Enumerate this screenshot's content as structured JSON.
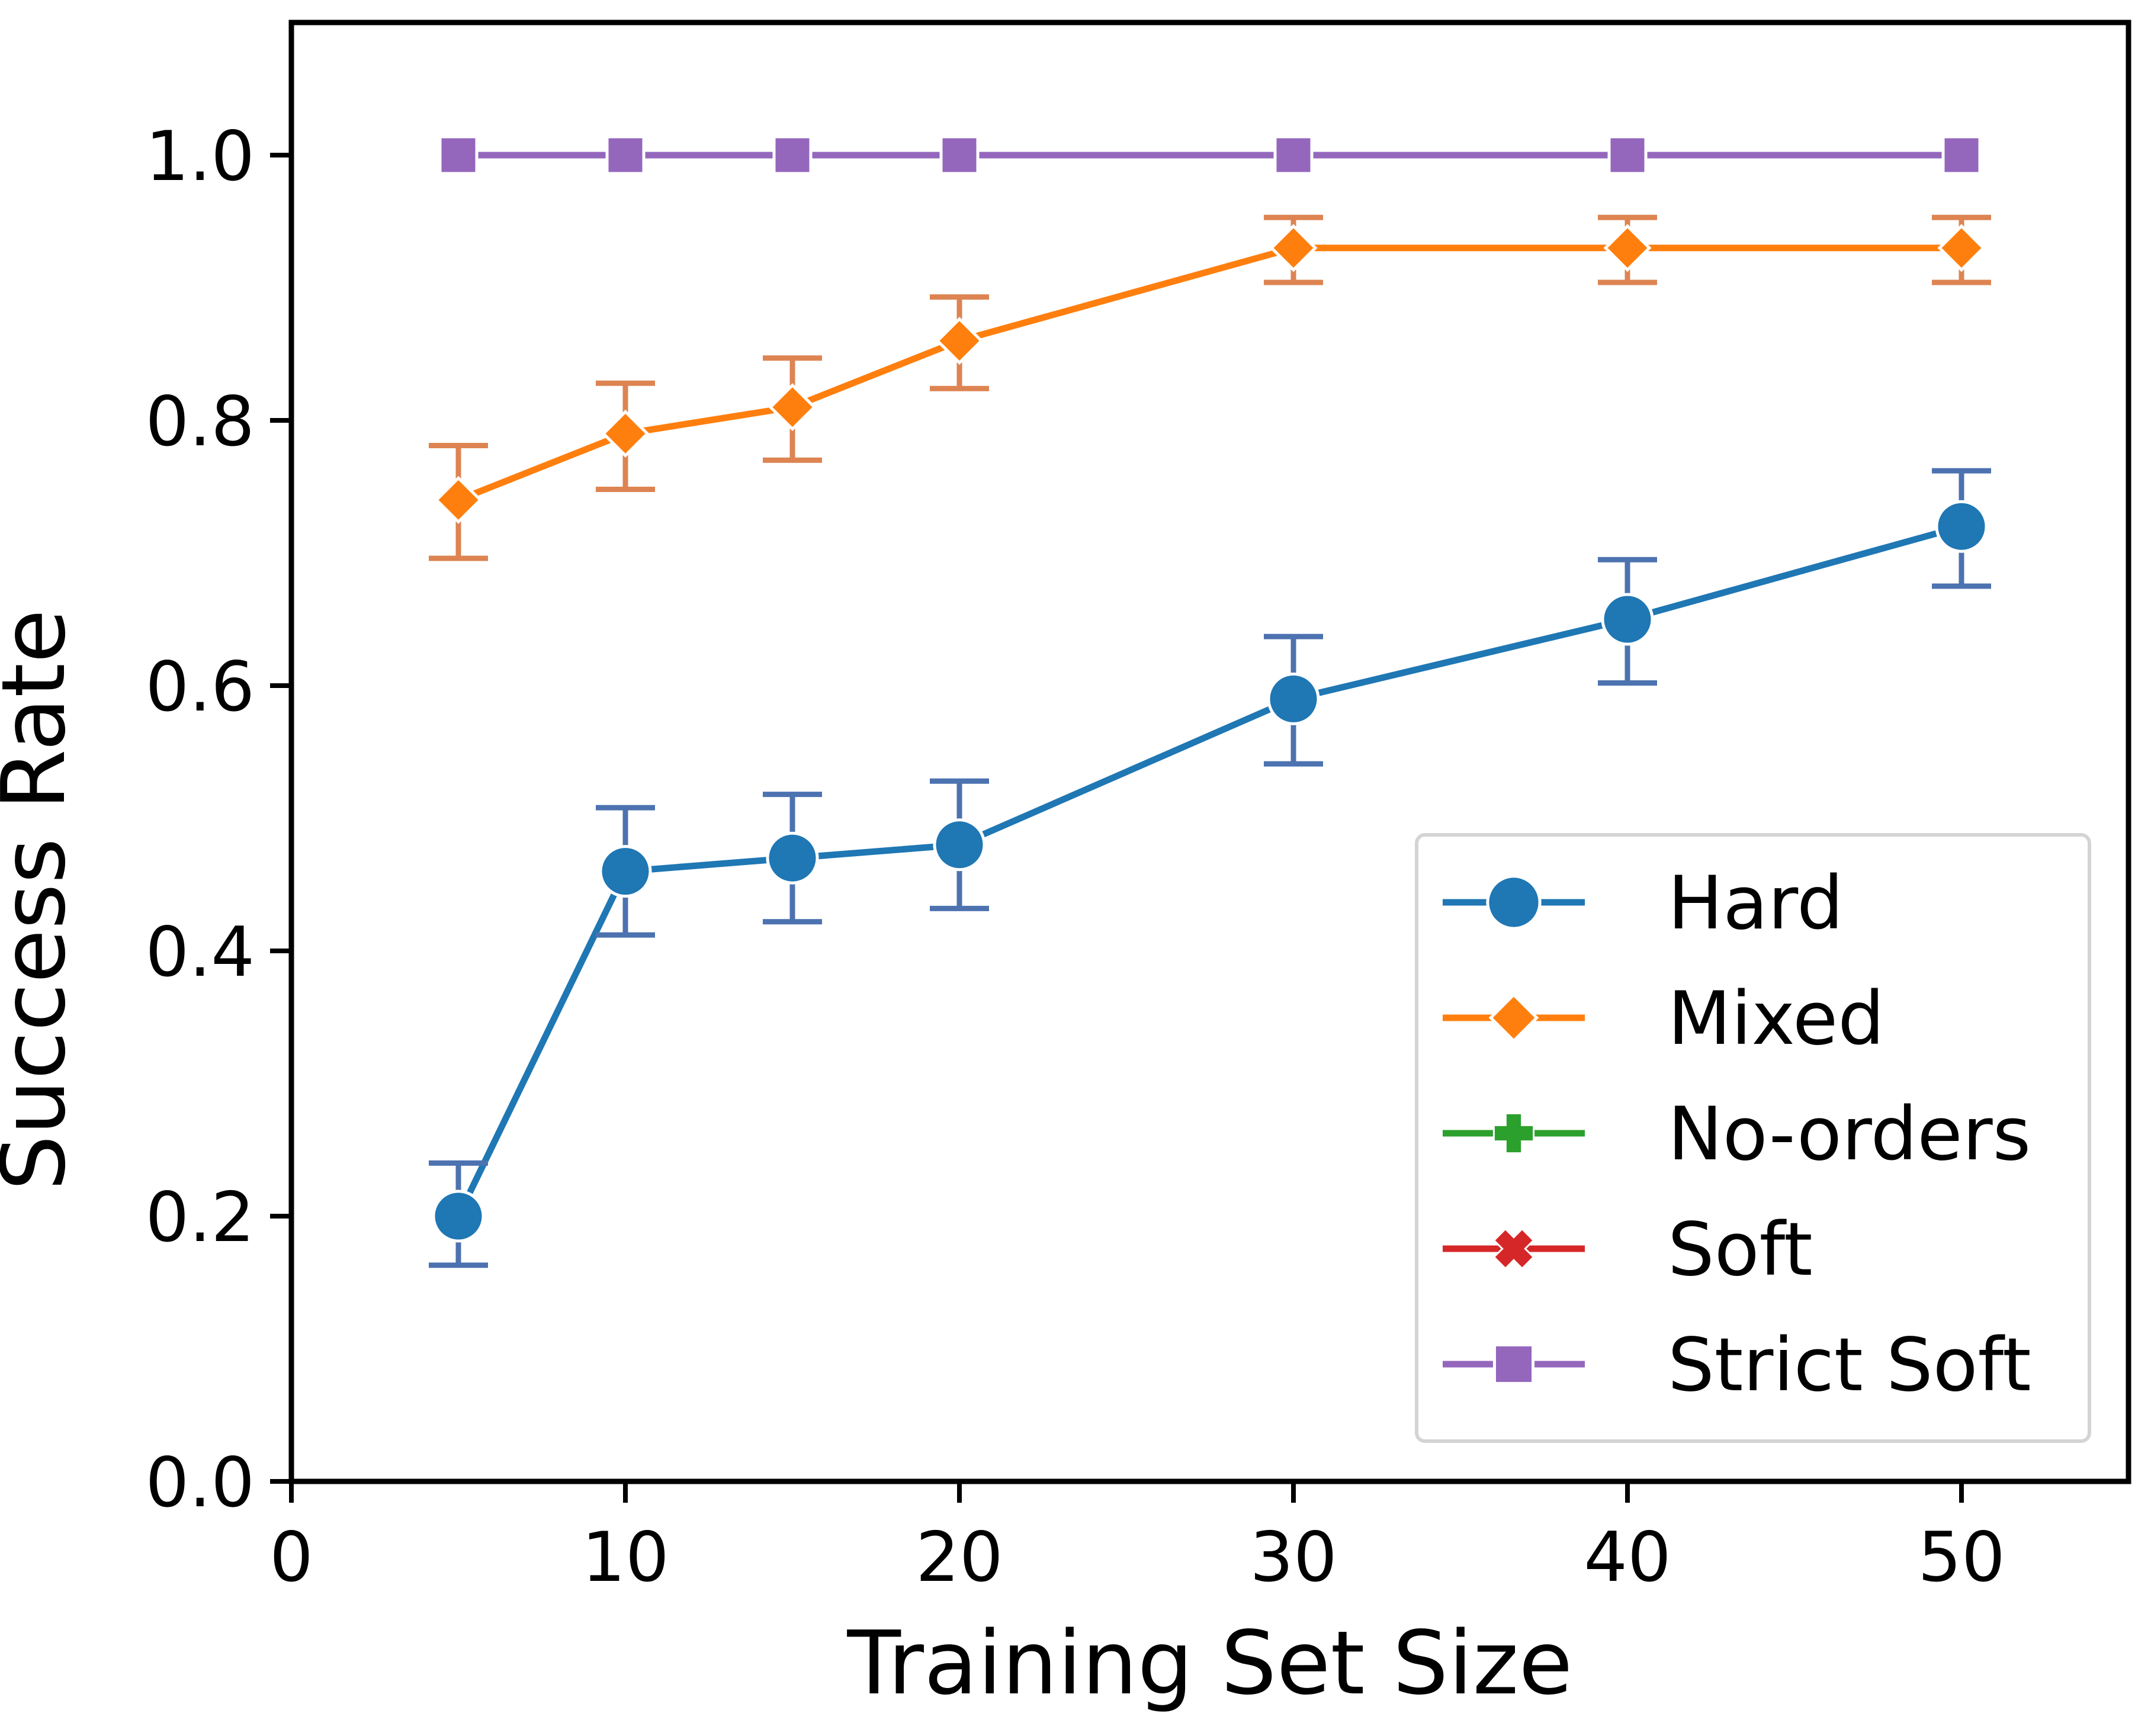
{
  "chart_data": {
    "type": "line",
    "title": "",
    "xlabel": "Training Set Size",
    "ylabel": "Success Rate",
    "xlim": [
      0,
      55
    ],
    "ylim": [
      0,
      1.1
    ],
    "xticks": [
      0,
      10,
      20,
      30,
      40,
      50
    ],
    "xtick_labels": [
      "0",
      "10",
      "20",
      "30",
      "40",
      "50"
    ],
    "yticks": [
      0.0,
      0.2,
      0.4,
      0.6,
      0.8,
      1.0
    ],
    "ytick_labels": [
      "0.0",
      "0.2",
      "0.4",
      "0.6",
      "0.8",
      "1.0"
    ],
    "grid": false,
    "legend_position": "lower-right",
    "x": [
      5,
      10,
      15,
      20,
      30,
      40,
      50
    ],
    "series": [
      {
        "name": "Hard",
        "color": "#1f77b4",
        "error_color": "#4c72b0",
        "marker": "circle",
        "values": [
          0.2,
          0.46,
          0.47,
          0.48,
          0.59,
          0.65,
          0.72
        ],
        "error_low": [
          0.163,
          0.412,
          0.422,
          0.432,
          0.541,
          0.602,
          0.675
        ],
        "error_high": [
          0.24,
          0.508,
          0.518,
          0.528,
          0.637,
          0.695,
          0.762
        ]
      },
      {
        "name": "Mixed",
        "color": "#ff7f0e",
        "error_color": "#dd8452",
        "marker": "diamond",
        "values": [
          0.74,
          0.79,
          0.81,
          0.86,
          0.93,
          0.93,
          0.93
        ],
        "error_low": [
          0.696,
          0.748,
          0.77,
          0.824,
          0.904,
          0.904,
          0.904
        ],
        "error_high": [
          0.781,
          0.828,
          0.847,
          0.893,
          0.953,
          0.953,
          0.953
        ]
      },
      {
        "name": "No-orders",
        "color": "#2ca02c",
        "error_color": "#55a868",
        "marker": "plus",
        "values": [
          1.0,
          1.0,
          1.0,
          1.0,
          1.0,
          1.0,
          1.0
        ]
      },
      {
        "name": "Soft",
        "color": "#d62728",
        "error_color": "#c44e52",
        "marker": "x",
        "values": [
          1.0,
          1.0,
          1.0,
          1.0,
          1.0,
          1.0,
          1.0
        ]
      },
      {
        "name": "Strict Soft",
        "color": "#9467bd",
        "error_color": "#8172b3",
        "marker": "square",
        "values": [
          1.0,
          1.0,
          1.0,
          1.0,
          1.0,
          1.0,
          1.0
        ]
      }
    ]
  }
}
